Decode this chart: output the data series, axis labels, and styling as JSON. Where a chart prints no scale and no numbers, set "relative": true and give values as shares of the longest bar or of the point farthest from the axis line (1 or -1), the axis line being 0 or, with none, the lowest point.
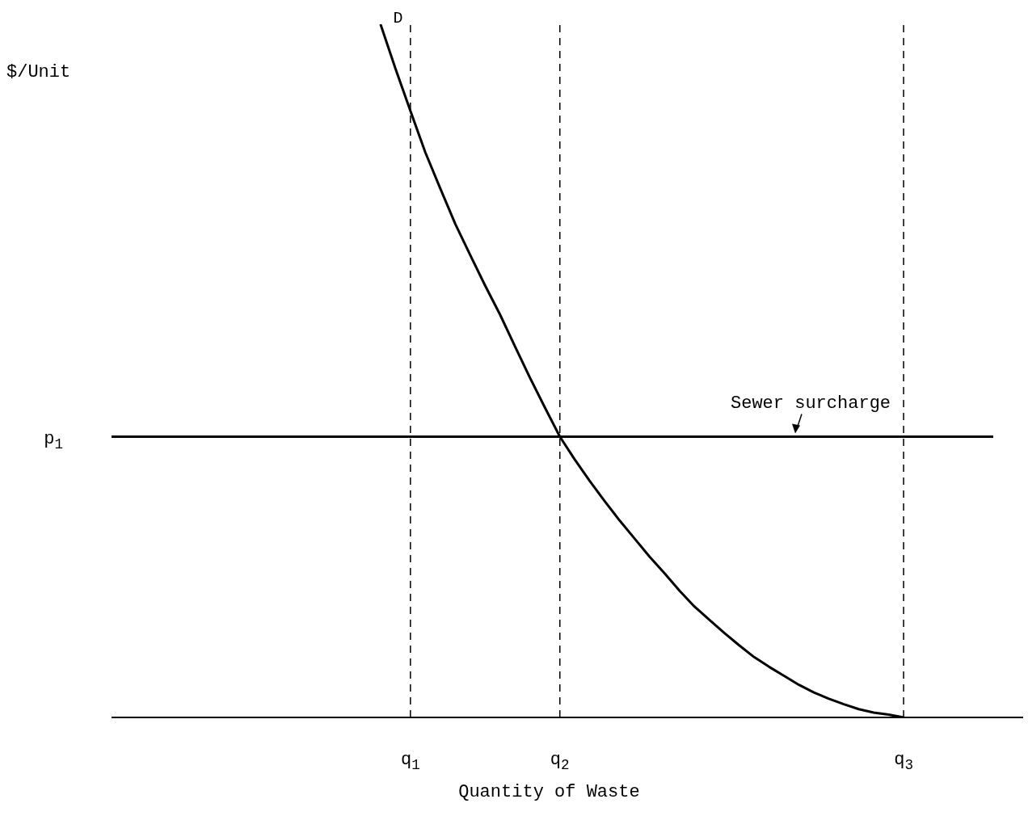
{
  "chart_data": {
    "type": "line",
    "relative": true,
    "xlabel": "Quantity of Waste",
    "ylabel": "$/Unit",
    "tick_labels": "x",
    "marker": "none",
    "categories": [
      null,
      null,
      null,
      null,
      null,
      null,
      null,
      null,
      null,
      null,
      null,
      null,
      null,
      null,
      null,
      null,
      null,
      null,
      null,
      null,
      "q$_{1}$",
      null,
      null,
      null,
      null,
      null,
      null,
      null,
      null,
      null,
      "q$_{2}$",
      null,
      null,
      null,
      null,
      null,
      null,
      null,
      null,
      null,
      null,
      null,
      null,
      null,
      null,
      null,
      null,
      null,
      null,
      null,
      null,
      null,
      null,
      "q$_{3}$",
      null,
      null,
      null,
      null,
      null,
      null,
      null,
      null
    ],
    "series": [
      {
        "name": "D",
        "color": "#000000",
        "line_style": "solid",
        "values": [
          null,
          null,
          null,
          null,
          null,
          null,
          null,
          null,
          null,
          null,
          null,
          null,
          null,
          null,
          null,
          null,
          null,
          null,
          1,
          0.936,
          0.875,
          0.815,
          0.763,
          0.712,
          0.667,
          0.623,
          0.581,
          0.535,
          0.49,
          0.447,
          0.405,
          0.372,
          0.341,
          0.312,
          0.284,
          0.258,
          0.232,
          0.208,
          0.183,
          0.16,
          0.141,
          0.122,
          0.104,
          0.087,
          0.073,
          0.06,
          0.047,
          0.036,
          0.027,
          0.019,
          0.012,
          0.007,
          0.004,
          0,
          null,
          null,
          null,
          null,
          null,
          null,
          null,
          null
        ]
      },
      {
        "name": "Sewer surcharge",
        "color": "#000000",
        "line_style": "solid",
        "values": [
          0.405,
          0.405,
          0.405,
          0.405,
          0.405,
          0.405,
          0.405,
          0.405,
          0.405,
          0.405,
          0.405,
          0.405,
          0.405,
          0.405,
          0.405,
          0.405,
          0.405,
          0.405,
          0.405,
          0.405,
          0.405,
          0.405,
          0.405,
          0.405,
          0.405,
          0.405,
          0.405,
          0.405,
          0.405,
          0.405,
          0.405,
          0.405,
          0.405,
          0.405,
          0.405,
          0.405,
          0.405,
          0.405,
          0.405,
          0.405,
          0.405,
          0.405,
          0.405,
          0.405,
          0.405,
          0.405,
          0.405,
          0.405,
          0.405,
          0.405,
          0.405,
          0.405,
          0.405,
          0.405,
          0.405,
          0.405,
          0.405,
          0.405,
          0.405,
          0.405,
          null,
          null
        ]
      }
    ],
    "ref_lines": [
      {
        "axis": "x",
        "value": "q$_{1}$",
        "line_style": "dashed",
        "color": "#000000"
      },
      {
        "axis": "x",
        "value": "q$_{2}$",
        "line_style": "dashed",
        "color": "#000000"
      },
      {
        "axis": "x",
        "value": "q$_{3}$",
        "line_style": "dashed",
        "color": "#000000"
      }
    ],
    "annotations": [
      "p$_{1}$"
    ]
  }
}
